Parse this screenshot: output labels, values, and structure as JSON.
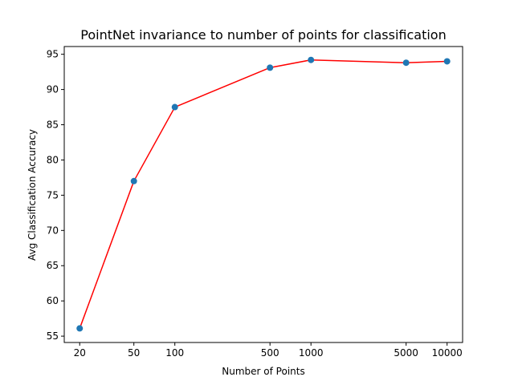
{
  "chart_data": {
    "type": "scatter",
    "title": "PointNet invariance to number of points for classification",
    "xlabel": "Number of Points",
    "ylabel": "Avg Classification Accuracy",
    "x_scale": "log",
    "x_ticks": [
      20,
      50,
      100,
      500,
      1000,
      5000,
      10000
    ],
    "x_tick_labels": [
      "20",
      "50",
      "100",
      "500",
      "1000",
      "5000",
      "10000"
    ],
    "y_ticks": [
      55,
      60,
      65,
      70,
      75,
      80,
      85,
      90,
      95
    ],
    "y_tick_labels": [
      "55",
      "60",
      "65",
      "70",
      "75",
      "80",
      "85",
      "90",
      "95"
    ],
    "xlim": [
      15.4,
      13000
    ],
    "ylim": [
      54.1,
      96.1
    ],
    "grid": false,
    "legend": false,
    "series": [
      {
        "x": [
          20,
          50,
          100,
          500,
          1000,
          5000,
          10000
        ],
        "y": [
          56.1,
          77.0,
          87.5,
          93.1,
          94.2,
          93.8,
          94.0
        ]
      }
    ],
    "colors": {
      "marker": "#1f77b4",
      "line": "#ff0000",
      "axes": "#000000"
    }
  }
}
